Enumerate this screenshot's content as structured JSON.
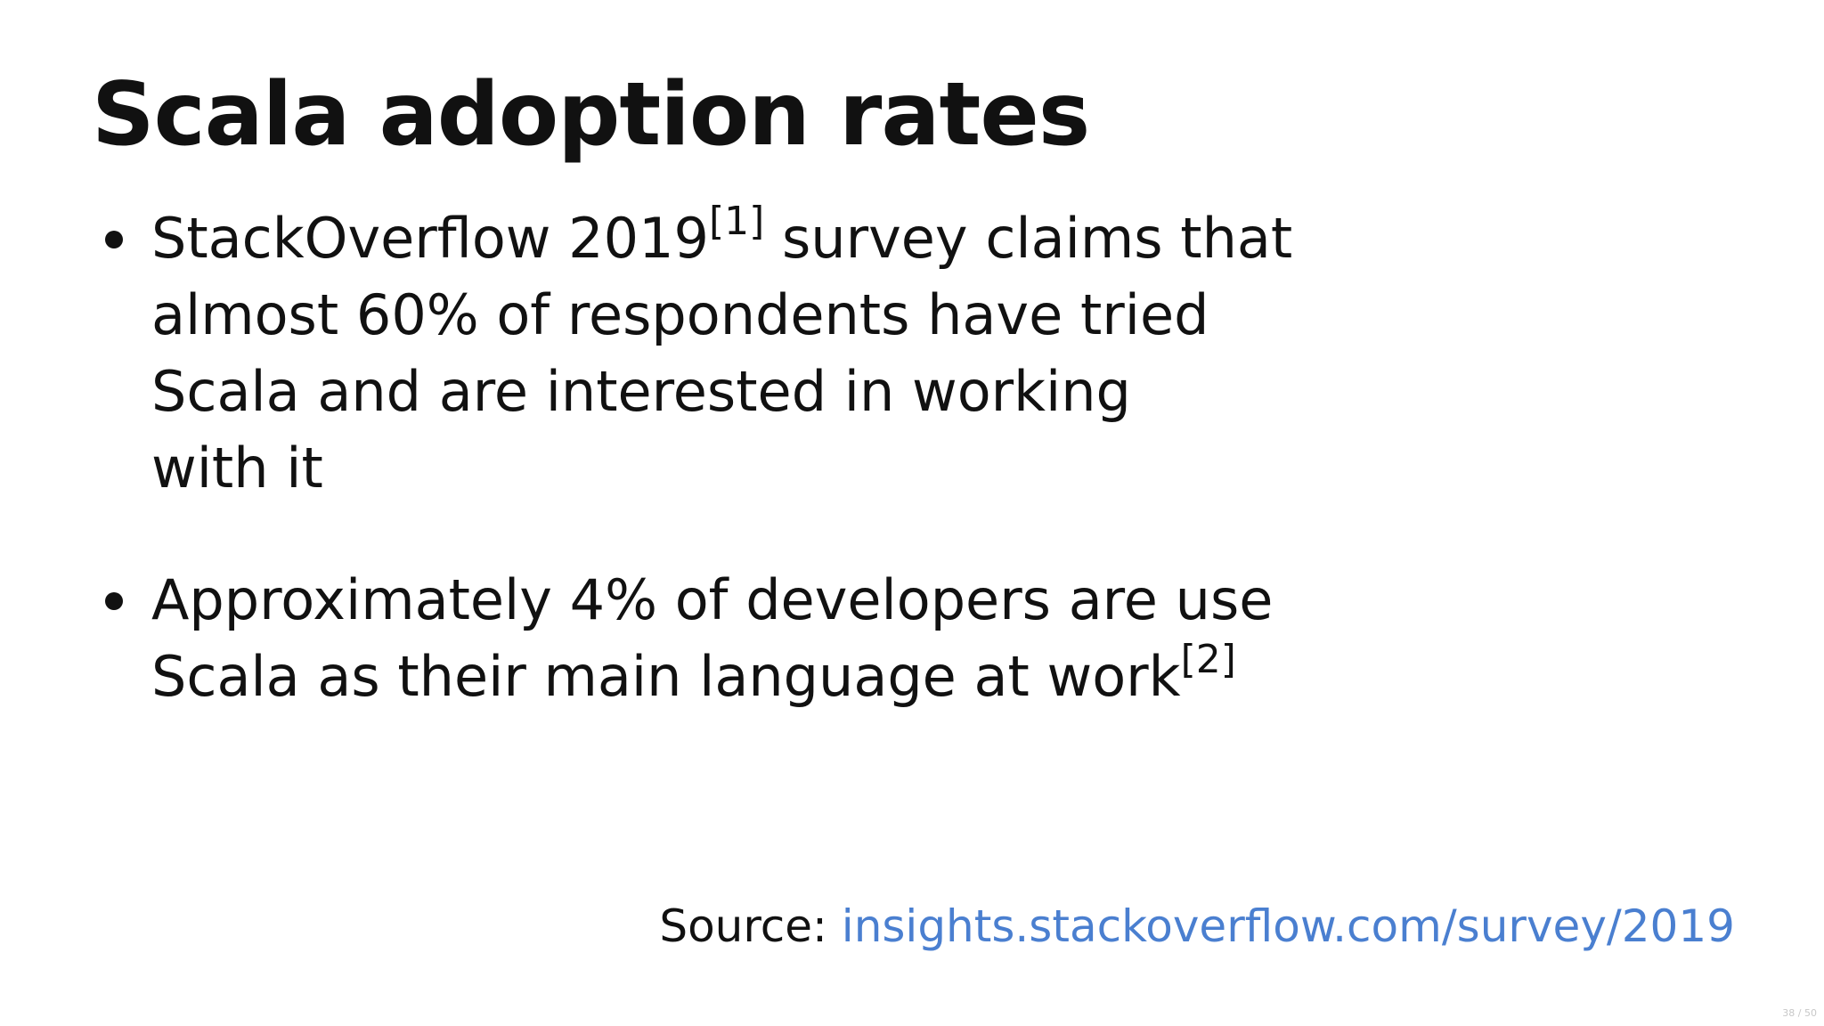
{
  "slide": {
    "title": "Scala adoption rates",
    "bullets": [
      {
        "lines": [
          "StackOverflow 2019",
          "almost 60% of respondents have tried",
          "Scala and are interested in working",
          "with it"
        ],
        "ref": "[1]",
        "after_ref": " survey claims that"
      },
      {
        "lines": [
          "Approximately 4% of developers are use",
          "Scala as their main language at work"
        ],
        "ref": "[2]"
      }
    ],
    "source_label": "Source: ",
    "source_link": "insights.stackoverflow.com/survey/2019",
    "page_number": "38 / 50"
  },
  "colors": {
    "text": "#111111",
    "link": "#4a7fd0",
    "background": "#ffffff"
  }
}
